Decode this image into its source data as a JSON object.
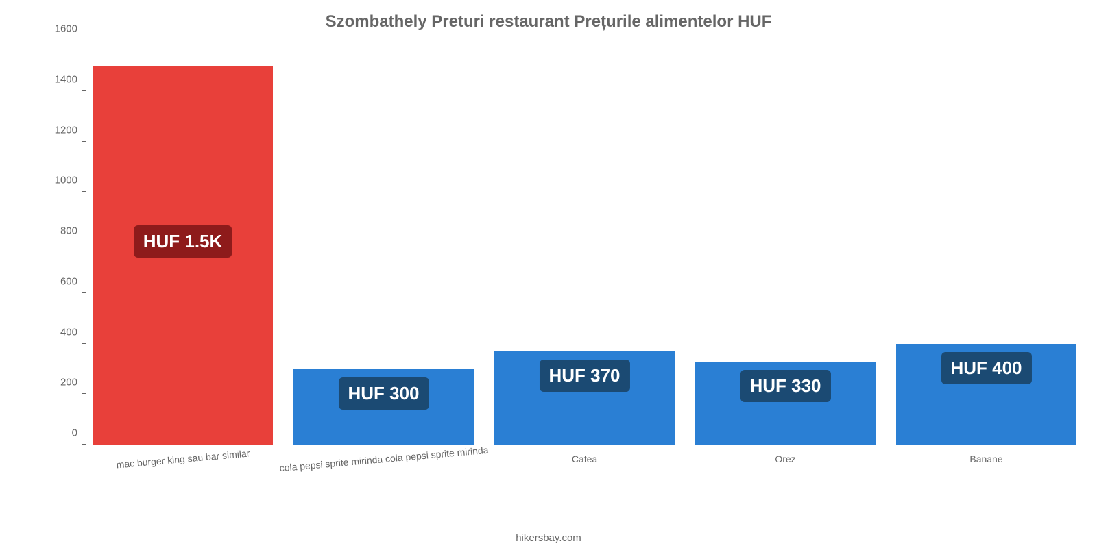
{
  "chart": {
    "type": "bar",
    "title": "Szombathely Preturi restaurant Prețurile alimentelor HUF",
    "title_fontsize": 24,
    "title_color": "#666666",
    "categories": [
      "mac burger king sau bar similar",
      "cola pepsi sprite mirinda cola pepsi sprite mirinda",
      "Cafea",
      "Orez",
      "Banane"
    ],
    "values": [
      1500,
      300,
      370,
      330,
      400
    ],
    "value_labels": [
      "HUF 1.5K",
      "HUF 300",
      "HUF 370",
      "HUF 330",
      "HUF 400"
    ],
    "bar_colors": [
      "#e8403a",
      "#2a7fd4",
      "#2a7fd4",
      "#2a7fd4",
      "#2a7fd4"
    ],
    "badge_bg_colors": [
      "#8e1b1b",
      "#1b4a73",
      "#1b4a73",
      "#1b4a73",
      "#1b4a73"
    ],
    "badge_fontsize": 26,
    "ylim": [
      0,
      1600
    ],
    "ytick_step": 200,
    "ytick_color": "#666666",
    "ytick_fontsize": 15,
    "xlabel_color": "#666666",
    "xlabel_fontsize": 14,
    "xlabel_rotate_first_two": true,
    "bar_width_pct": 90,
    "axis_color": "#666666",
    "background_color": "#ffffff",
    "attribution": "hikersbay.com",
    "attribution_fontsize": 15,
    "attribution_color": "#666666"
  }
}
